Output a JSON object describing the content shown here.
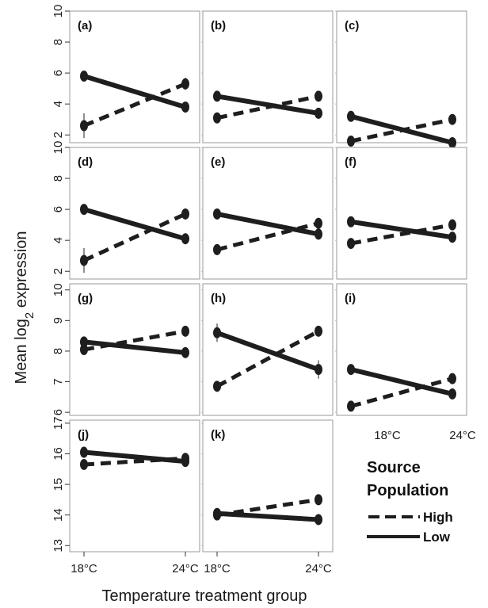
{
  "figure": {
    "ylabel_main": "Mean log",
    "ylabel_sub": "2",
    "ylabel_tail": " expression",
    "xlabel": "Temperature treatment group"
  },
  "legend": {
    "title_line1": "Source",
    "title_line2": "Population",
    "high_label": "High",
    "low_label": "Low",
    "x_tick_left": "18°C",
    "x_tick_right": "24°C"
  },
  "colors": {
    "line": "#1e1e1e",
    "frame": "#9a9a9a",
    "background": "#ffffff"
  },
  "chart_data": [
    {
      "panel": "(a)",
      "type": "line",
      "categories": [
        "18°C",
        "24°C"
      ],
      "ylim": [
        1.5,
        10
      ],
      "yticks": [
        2,
        4,
        6,
        8,
        10
      ],
      "show_yticks": true,
      "show_xticks": false,
      "series": [
        {
          "name": "High",
          "style": "dashed",
          "values": [
            2.6,
            5.3
          ],
          "err": [
            0.8,
            0.4
          ]
        },
        {
          "name": "Low",
          "style": "solid",
          "values": [
            5.8,
            3.8
          ],
          "err": [
            0.3,
            0.3
          ]
        }
      ]
    },
    {
      "panel": "(b)",
      "type": "line",
      "categories": [
        "18°C",
        "24°C"
      ],
      "ylim": [
        1.5,
        10
      ],
      "yticks": [
        2,
        4,
        6,
        8,
        10
      ],
      "show_yticks": false,
      "show_xticks": false,
      "series": [
        {
          "name": "High",
          "style": "dashed",
          "values": [
            3.1,
            4.5
          ],
          "err": [
            0.2,
            0.2
          ]
        },
        {
          "name": "Low",
          "style": "solid",
          "values": [
            4.5,
            3.4
          ],
          "err": [
            0.2,
            0.2
          ]
        }
      ]
    },
    {
      "panel": "(c)",
      "type": "line",
      "categories": [
        "18°C",
        "24°C"
      ],
      "ylim": [
        1.5,
        10
      ],
      "yticks": [
        2,
        4,
        6,
        8,
        10
      ],
      "show_yticks": false,
      "show_xticks": false,
      "series": [
        {
          "name": "High",
          "style": "dashed",
          "values": [
            1.6,
            3.0
          ],
          "err": [
            0.2,
            0.2
          ]
        },
        {
          "name": "Low",
          "style": "solid",
          "values": [
            3.2,
            1.5
          ],
          "err": [
            0.2,
            0.2
          ]
        }
      ]
    },
    {
      "panel": "(d)",
      "type": "line",
      "categories": [
        "18°C",
        "24°C"
      ],
      "ylim": [
        1.5,
        10
      ],
      "yticks": [
        2,
        4,
        6,
        8,
        10
      ],
      "show_yticks": true,
      "show_xticks": false,
      "series": [
        {
          "name": "High",
          "style": "dashed",
          "values": [
            2.7,
            5.7
          ],
          "err": [
            0.8,
            0.3
          ]
        },
        {
          "name": "Low",
          "style": "solid",
          "values": [
            6.0,
            4.1
          ],
          "err": [
            0.3,
            0.3
          ]
        }
      ]
    },
    {
      "panel": "(e)",
      "type": "line",
      "categories": [
        "18°C",
        "24°C"
      ],
      "ylim": [
        1.5,
        10
      ],
      "yticks": [
        2,
        4,
        6,
        8,
        10
      ],
      "show_yticks": false,
      "show_xticks": false,
      "series": [
        {
          "name": "High",
          "style": "dashed",
          "values": [
            3.4,
            5.1
          ],
          "err": [
            0.2,
            0.2
          ]
        },
        {
          "name": "Low",
          "style": "solid",
          "values": [
            5.7,
            4.4
          ],
          "err": [
            0.2,
            0.2
          ]
        }
      ]
    },
    {
      "panel": "(f)",
      "type": "line",
      "categories": [
        "18°C",
        "24°C"
      ],
      "ylim": [
        1.5,
        10
      ],
      "yticks": [
        2,
        4,
        6,
        8,
        10
      ],
      "show_yticks": false,
      "show_xticks": false,
      "series": [
        {
          "name": "High",
          "style": "dashed",
          "values": [
            3.8,
            5.0
          ],
          "err": [
            0.2,
            0.2
          ]
        },
        {
          "name": "Low",
          "style": "solid",
          "values": [
            5.2,
            4.2
          ],
          "err": [
            0.2,
            0.2
          ]
        }
      ]
    },
    {
      "panel": "(g)",
      "type": "line",
      "categories": [
        "18°C",
        "24°C"
      ],
      "ylim": [
        5.9,
        10.2
      ],
      "yticks": [
        6,
        7,
        8,
        9,
        10
      ],
      "show_yticks": true,
      "show_xticks": false,
      "series": [
        {
          "name": "High",
          "style": "dashed",
          "values": [
            8.05,
            8.65
          ],
          "err": [
            0.1,
            0.1
          ]
        },
        {
          "name": "Low",
          "style": "solid",
          "values": [
            8.3,
            7.95
          ],
          "err": [
            0.1,
            0.1
          ]
        }
      ]
    },
    {
      "panel": "(h)",
      "type": "line",
      "categories": [
        "18°C",
        "24°C"
      ],
      "ylim": [
        5.9,
        10.2
      ],
      "yticks": [
        6,
        7,
        8,
        9,
        10
      ],
      "show_yticks": false,
      "show_xticks": false,
      "series": [
        {
          "name": "High",
          "style": "dashed",
          "values": [
            6.85,
            8.65
          ],
          "err": [
            0.1,
            0.1
          ]
        },
        {
          "name": "Low",
          "style": "solid",
          "values": [
            8.6,
            7.4
          ],
          "err": [
            0.3,
            0.3
          ]
        }
      ]
    },
    {
      "panel": "(i)",
      "type": "line",
      "categories": [
        "18°C",
        "24°C"
      ],
      "ylim": [
        5.9,
        10.2
      ],
      "yticks": [
        6,
        7,
        8,
        9,
        10
      ],
      "show_yticks": false,
      "show_xticks": false,
      "series": [
        {
          "name": "High",
          "style": "dashed",
          "values": [
            6.2,
            7.1
          ],
          "err": [
            0.1,
            0.1
          ]
        },
        {
          "name": "Low",
          "style": "solid",
          "values": [
            7.4,
            6.6
          ],
          "err": [
            0.15,
            0.15
          ]
        }
      ]
    },
    {
      "panel": "(j)",
      "type": "line",
      "categories": [
        "18°C",
        "24°C"
      ],
      "ylim": [
        12.8,
        17.1
      ],
      "yticks": [
        13,
        14,
        15,
        16,
        17
      ],
      "show_yticks": true,
      "show_xticks": true,
      "series": [
        {
          "name": "High",
          "style": "dashed",
          "values": [
            15.65,
            15.85
          ],
          "err": [
            0.1,
            0.1
          ]
        },
        {
          "name": "Low",
          "style": "solid",
          "values": [
            16.05,
            15.75
          ],
          "err": [
            0.1,
            0.1
          ]
        }
      ]
    },
    {
      "panel": "(k)",
      "type": "line",
      "categories": [
        "18°C",
        "24°C"
      ],
      "ylim": [
        12.8,
        17.1
      ],
      "yticks": [
        13,
        14,
        15,
        16,
        17
      ],
      "show_yticks": false,
      "show_xticks": true,
      "series": [
        {
          "name": "High",
          "style": "dashed",
          "values": [
            14.0,
            14.5
          ],
          "err": [
            0.1,
            0.1
          ]
        },
        {
          "name": "Low",
          "style": "solid",
          "values": [
            14.05,
            13.85
          ],
          "err": [
            0.1,
            0.1
          ]
        }
      ]
    }
  ]
}
